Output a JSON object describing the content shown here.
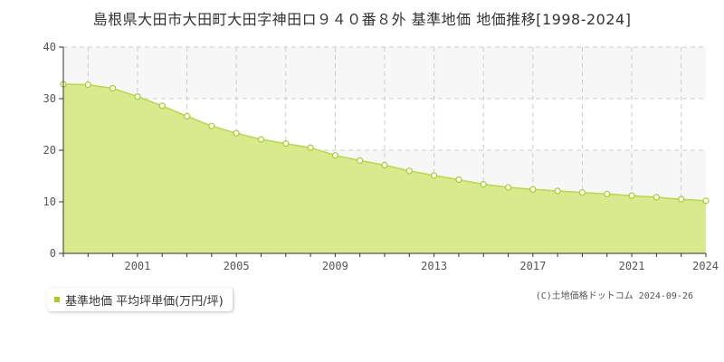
{
  "title": "島根県大田市大田町大田字神田ロ９４０番８外 基準地価 地価推移[1998-2024]",
  "legend": {
    "label": "基準地価 平均坪単価(万円/坪)"
  },
  "credit": "(C)土地価格ドットコム 2024-09-26",
  "colors": {
    "area_fill": "#d9ea8e",
    "line": "#b7d84a",
    "marker_fill": "#ffffff",
    "marker_stroke": "#a8cd28",
    "grid": "#cccccc",
    "band": "#f7f7f7",
    "axis": "#333333"
  },
  "chart_data": {
    "type": "area",
    "x": [
      1998,
      1999,
      2000,
      2001,
      2002,
      2003,
      2004,
      2005,
      2006,
      2007,
      2008,
      2009,
      2010,
      2011,
      2012,
      2013,
      2014,
      2015,
      2016,
      2017,
      2018,
      2019,
      2020,
      2021,
      2022,
      2023,
      2024
    ],
    "series": [
      {
        "name": "基準地価 平均坪単価(万円/坪)",
        "values": [
          32.8,
          32.7,
          32.0,
          30.4,
          28.6,
          26.6,
          24.7,
          23.3,
          22.1,
          21.3,
          20.5,
          19.0,
          18.0,
          17.1,
          16.0,
          15.1,
          14.3,
          13.4,
          12.8,
          12.4,
          12.1,
          11.8,
          11.5,
          11.2,
          10.9,
          10.5,
          10.2
        ]
      }
    ],
    "xticks": [
      2001,
      2005,
      2009,
      2013,
      2017,
      2021,
      2024
    ],
    "yticks": [
      0,
      10,
      20,
      30,
      40
    ],
    "xlim": [
      1998,
      2024
    ],
    "ylim": [
      0,
      40
    ],
    "grid": true,
    "legend_position": "bottom-left"
  }
}
